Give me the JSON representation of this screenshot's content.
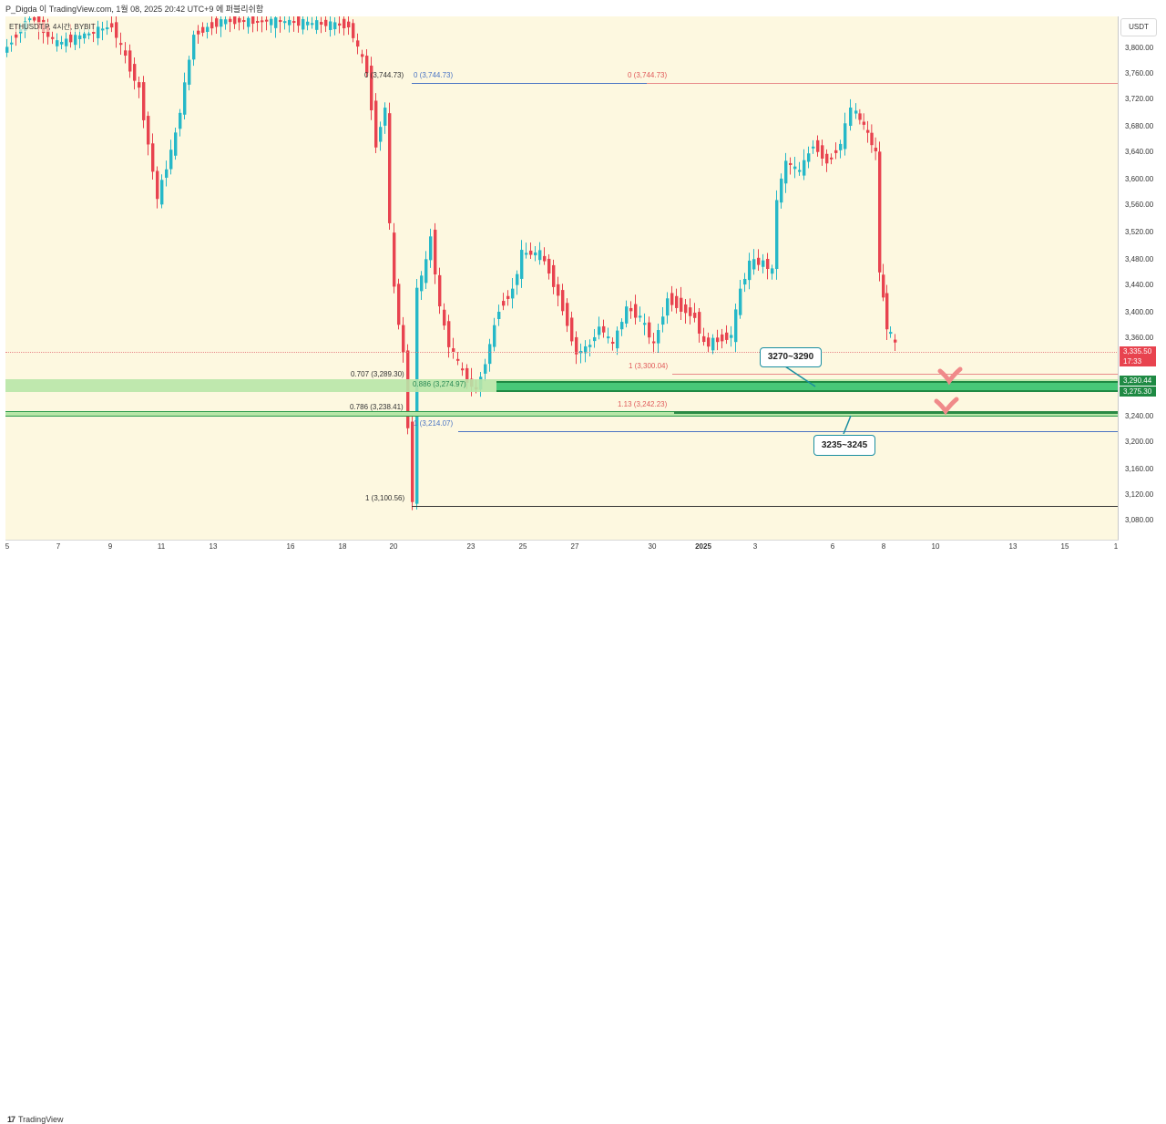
{
  "header": {
    "text": "P_Digda 이 TradingView.com, 1월 08, 2025 20:42 UTC+9 에 퍼블리쉬함"
  },
  "symbol": {
    "text": "ETHUSDT.P, 4시간, BYBIT"
  },
  "yaxis": {
    "currency": "USDT",
    "ticks": [
      "3,800.00",
      "3,760.00",
      "3,720.00",
      "3,680.00",
      "3,640.00",
      "3,600.00",
      "3,560.00",
      "3,520.00",
      "3,480.00",
      "3,440.00",
      "3,400.00",
      "3,360.00",
      "3,240.00",
      "3,200.00",
      "3,160.00",
      "3,120.00",
      "3,080.00"
    ],
    "price_label": "3,335.50",
    "countdown": "17:33",
    "zone_top_label": "3,290.44",
    "zone_bottom_label": "3,275.30"
  },
  "xaxis": {
    "ticks": [
      "5",
      "7",
      "9",
      "11",
      "13",
      "16",
      "18",
      "20",
      "23",
      "25",
      "27",
      "30",
      "2025",
      "3",
      "6",
      "8",
      "10",
      "13",
      "15",
      "1"
    ]
  },
  "fib": {
    "f0_left": "0 (3,744.73)",
    "f0_blue": "0 (3,744.73)",
    "f0_red": "0 (3,744.73)",
    "f707": "0.707 (3,289.30)",
    "f886": "0.886 (3,274.97)",
    "f786": "0.786 (3,238.41)",
    "f1_blue": "1 (3,214.07)",
    "f1_left": "1 (3,100.56)",
    "f1_red": "1 (3,300.04)",
    "f113": "1.13 (3,242.23)"
  },
  "callouts": {
    "upper": "3270~3290",
    "lower": "3235~3245"
  },
  "footer": {
    "brand": "TradingView",
    "logo": "17"
  },
  "colors": {
    "up": "#26b8c8",
    "down": "#e8434f",
    "zone_green": "#b8e6a8",
    "zone_border": "#2a9a4a",
    "bg": "#fdf8e0"
  }
}
